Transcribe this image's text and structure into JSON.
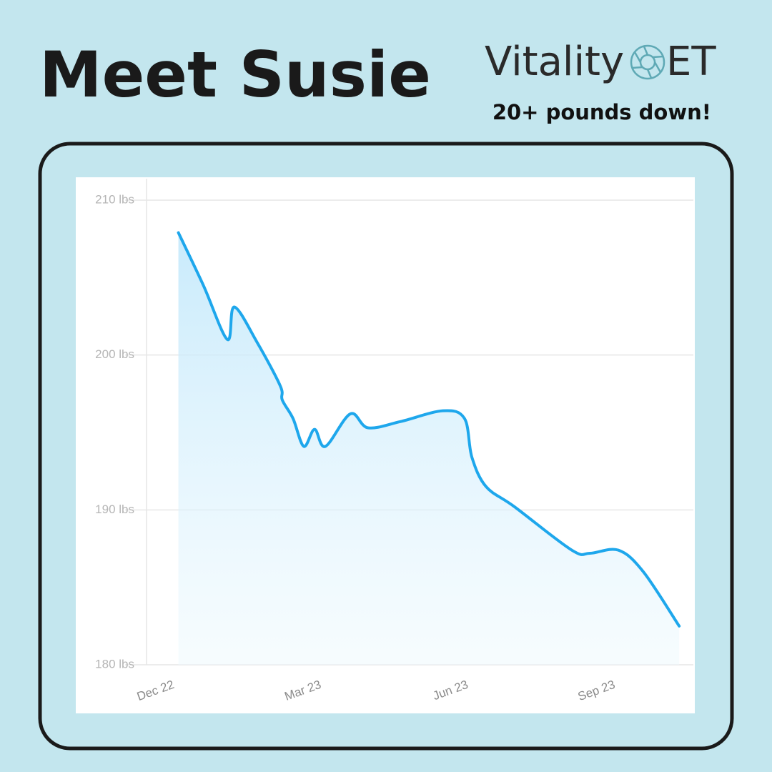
{
  "header": {
    "title": "Meet Susie",
    "logo": "Vitality",
    "logo_suffix": "ET",
    "tagline": "20+ pounds down!"
  },
  "chart_data": {
    "type": "line",
    "x": [
      0.07,
      0.58,
      1.07,
      1.21,
      1.68,
      2.15,
      2.19,
      2.41,
      2.63,
      2.85,
      3.07,
      3.58,
      3.94,
      4.6,
      5.47,
      5.91,
      6.06,
      6.35,
      6.93,
      8.1,
      8.47,
      9.05,
      9.56,
      10.29
    ],
    "series": [
      {
        "color": "#1ea7ec",
        "values": [
          207.9,
          204.5,
          201.0,
          203.1,
          200.8,
          198.0,
          197.1,
          195.9,
          194.1,
          195.2,
          194.1,
          196.2,
          195.3,
          195.7,
          196.4,
          195.9,
          193.4,
          191.5,
          190.2,
          187.4,
          187.2,
          187.4,
          186.0,
          182.5
        ]
      }
    ],
    "xlim": [
      -0.58,
      10.58
    ],
    "xticks": [
      {
        "value": 0,
        "label": "Dec 22"
      },
      {
        "value": 3,
        "label": "Mar 23"
      },
      {
        "value": 6,
        "label": "Jun 23"
      },
      {
        "value": 9,
        "label": "Sep 23"
      }
    ],
    "ylim": [
      180,
      210
    ],
    "yticks": [
      {
        "value": 180,
        "label": "180 lbs"
      },
      {
        "value": 190,
        "label": "190 lbs"
      },
      {
        "value": 200,
        "label": "200 lbs"
      },
      {
        "value": 210,
        "label": "210 lbs"
      }
    ],
    "grid": true,
    "area_fill": true
  }
}
